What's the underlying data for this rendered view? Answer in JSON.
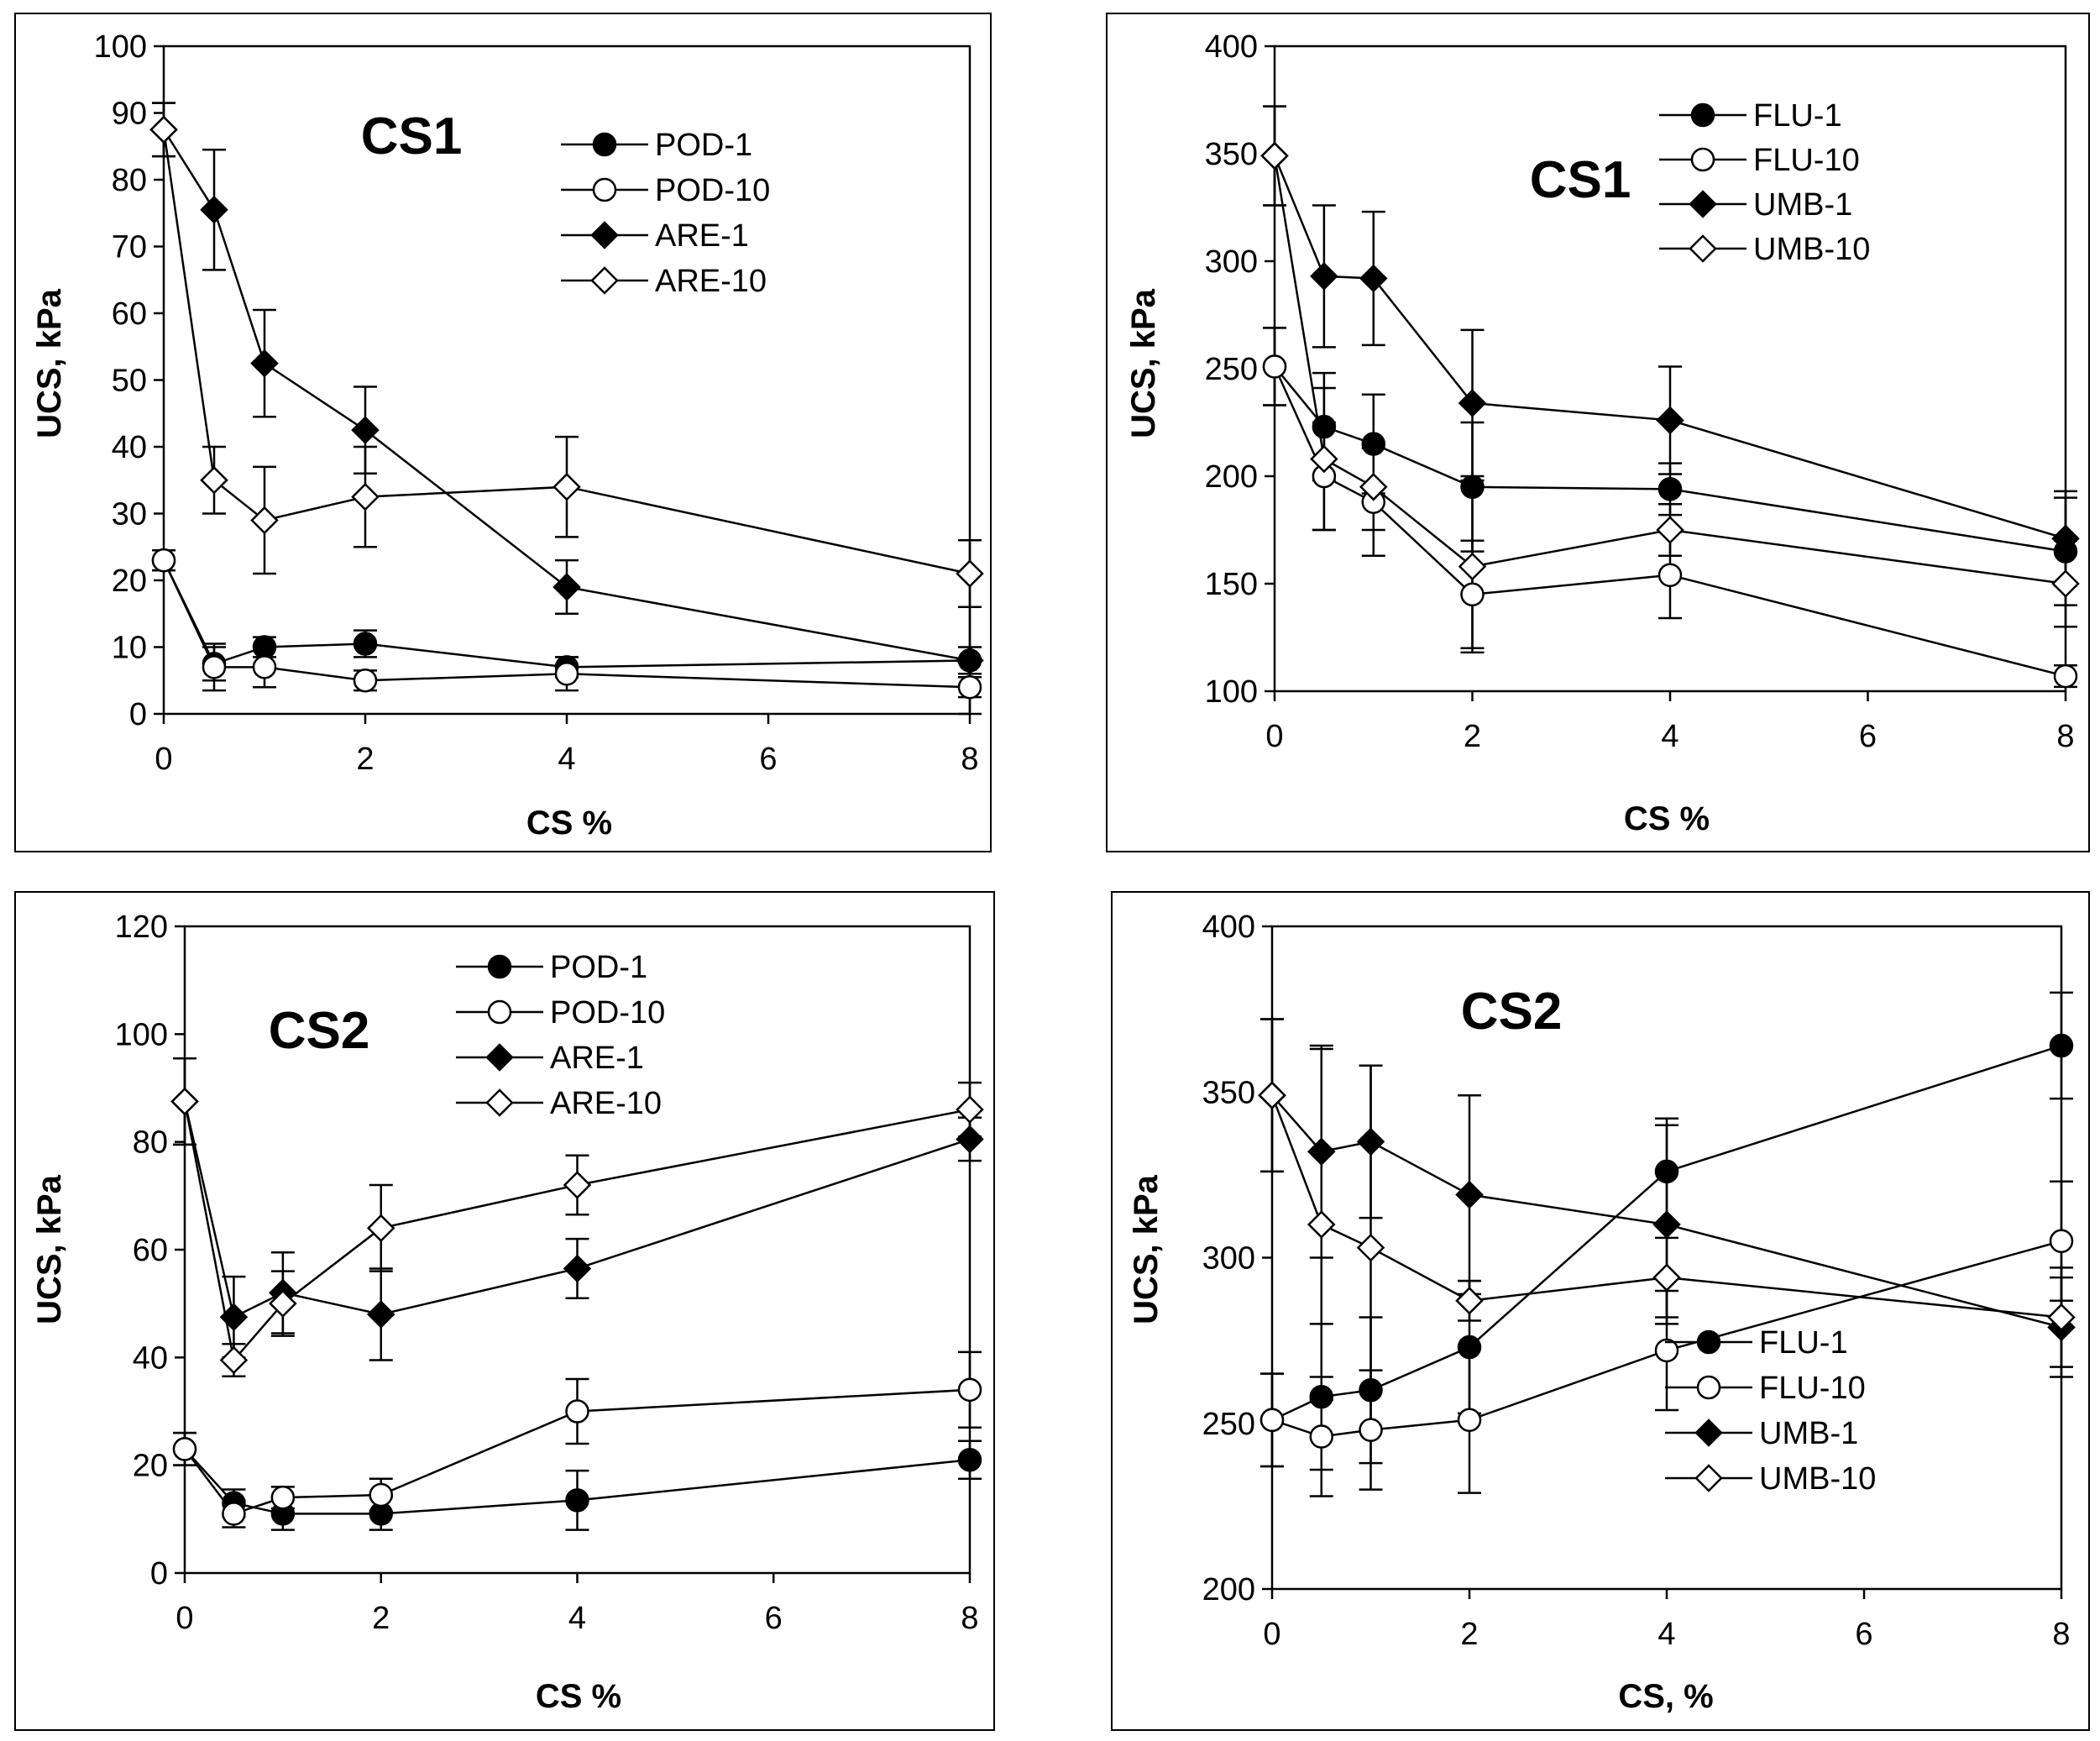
{
  "chart_data": [
    {
      "type": "line",
      "title": "CS1",
      "xlabel": "CS %",
      "ylabel": "UCS, kPa",
      "xlim": [
        0,
        8
      ],
      "ylim": [
        0,
        100
      ],
      "xticks": [
        "0",
        "2",
        "4",
        "6",
        "8"
      ],
      "yticks": [
        "0",
        "10",
        "20",
        "30",
        "40",
        "50",
        "60",
        "70",
        "80",
        "90",
        "100"
      ],
      "legend_position": "top-right",
      "x": [
        0,
        0.5,
        1,
        2,
        4,
        8
      ],
      "series": [
        {
          "name": "POD-1",
          "marker": "circle-filled",
          "values": [
            23,
            7.5,
            10,
            10.5,
            7,
            8
          ],
          "errors": [
            1.5,
            2.5,
            1.5,
            2,
            1.5,
            2
          ]
        },
        {
          "name": "POD-10",
          "marker": "circle-open",
          "values": [
            23,
            7,
            7,
            5,
            6,
            4
          ],
          "errors": [
            1.5,
            3.5,
            3,
            1.5,
            2.5,
            1.5
          ]
        },
        {
          "name": "ARE-1",
          "marker": "diamond-filled",
          "values": [
            87.5,
            75.5,
            52.5,
            42.5,
            19,
            8
          ],
          "errors": [
            4,
            9,
            8,
            6.5,
            4,
            8
          ]
        },
        {
          "name": "ARE-10",
          "marker": "diamond-open",
          "values": [
            87.5,
            35,
            29,
            32.5,
            34,
            21
          ],
          "errors": [
            4,
            5,
            8,
            7.5,
            7.5,
            5
          ]
        }
      ]
    },
    {
      "type": "line",
      "title": "CS1",
      "xlabel": "CS %",
      "ylabel": "UCS, kPa",
      "xlim": [
        0,
        8
      ],
      "ylim": [
        100,
        400
      ],
      "xticks": [
        "0",
        "2",
        "4",
        "6",
        "8"
      ],
      "yticks": [
        "100",
        "150",
        "200",
        "250",
        "300",
        "350",
        "400"
      ],
      "legend_position": "top-right",
      "x": [
        0,
        0.5,
        1,
        2,
        4,
        8
      ],
      "series": [
        {
          "name": "FLU-1",
          "marker": "circle-filled",
          "values": [
            251,
            223,
            215,
            195,
            194,
            165
          ],
          "errors": [
            18,
            25,
            23,
            30,
            12,
            25
          ]
        },
        {
          "name": "FLU-10",
          "marker": "circle-open",
          "values": [
            251,
            200,
            188,
            145,
            154,
            107
          ],
          "errors": [
            18,
            25,
            25,
            25,
            20,
            5
          ]
        },
        {
          "name": "UMB-1",
          "marker": "diamond-filled",
          "values": [
            349,
            293,
            292,
            234,
            226,
            171
          ],
          "errors": [
            23,
            33,
            31,
            34,
            25,
            22
          ]
        },
        {
          "name": "UMB-10",
          "marker": "diamond-open",
          "values": [
            349,
            208,
            195,
            158,
            175,
            150
          ],
          "errors": [
            23,
            33,
            20,
            40,
            12,
            20
          ]
        }
      ]
    },
    {
      "type": "line",
      "title": "CS2",
      "xlabel": "CS %",
      "ylabel": "UCS, kPa",
      "xlim": [
        0,
        8
      ],
      "ylim": [
        0,
        120
      ],
      "xticks": [
        "0",
        "2",
        "4",
        "6",
        "8"
      ],
      "yticks": [
        "0",
        "20",
        "40",
        "60",
        "80",
        "100",
        "120"
      ],
      "legend_position": "top-right",
      "x": [
        0,
        0.5,
        1,
        2,
        4,
        8
      ],
      "series": [
        {
          "name": "POD-1",
          "marker": "circle-filled",
          "values": [
            23,
            13,
            11,
            11,
            13.5,
            21
          ],
          "errors": [
            3,
            2.5,
            3,
            3,
            5.5,
            3.5
          ]
        },
        {
          "name": "POD-10",
          "marker": "circle-open",
          "values": [
            23,
            11,
            14,
            14.5,
            30,
            34
          ],
          "errors": [
            3,
            2.5,
            2,
            3,
            6,
            7
          ]
        },
        {
          "name": "ARE-1",
          "marker": "diamond-filled",
          "values": [
            87.5,
            47.5,
            52,
            48,
            56.5,
            80.5
          ],
          "errors": [
            8,
            7.5,
            7.5,
            8.5,
            5.5,
            4
          ]
        },
        {
          "name": "ARE-10",
          "marker": "diamond-open",
          "values": [
            87.5,
            39.5,
            50,
            64,
            72,
            86
          ],
          "errors": [
            8,
            3,
            6,
            8,
            5.5,
            5
          ]
        }
      ]
    },
    {
      "type": "line",
      "title": "CS2",
      "xlabel": "CS, %",
      "ylabel": "UCS, kPa",
      "xlim": [
        0,
        8
      ],
      "ylim": [
        200,
        400
      ],
      "xticks": [
        "0",
        "2",
        "4",
        "6",
        "8"
      ],
      "yticks": [
        "200",
        "250",
        "300",
        "350",
        "400"
      ],
      "legend_position": "bottom-right",
      "x": [
        0,
        0.5,
        1,
        2,
        4,
        8
      ],
      "series": [
        {
          "name": "FLU-1",
          "marker": "circle-filled",
          "values": [
            251,
            258,
            260,
            273,
            326,
            364
          ],
          "errors": [
            14,
            22,
            22,
            20,
            16,
            16
          ]
        },
        {
          "name": "FLU-10",
          "marker": "circle-open",
          "values": [
            251,
            246,
            248,
            251,
            272,
            305
          ],
          "errors": [
            14,
            18,
            18,
            22,
            18,
            18
          ]
        },
        {
          "name": "UMB-1",
          "marker": "diamond-filled",
          "values": [
            349,
            332,
            335,
            319,
            310,
            279
          ],
          "errors": [
            23,
            32,
            23,
            30,
            30,
            15
          ]
        },
        {
          "name": "UMB-10",
          "marker": "diamond-open",
          "values": [
            349,
            310,
            303,
            287,
            294,
            282
          ],
          "errors": [
            23,
            53,
            55,
            6,
            12,
            15
          ]
        }
      ]
    }
  ]
}
